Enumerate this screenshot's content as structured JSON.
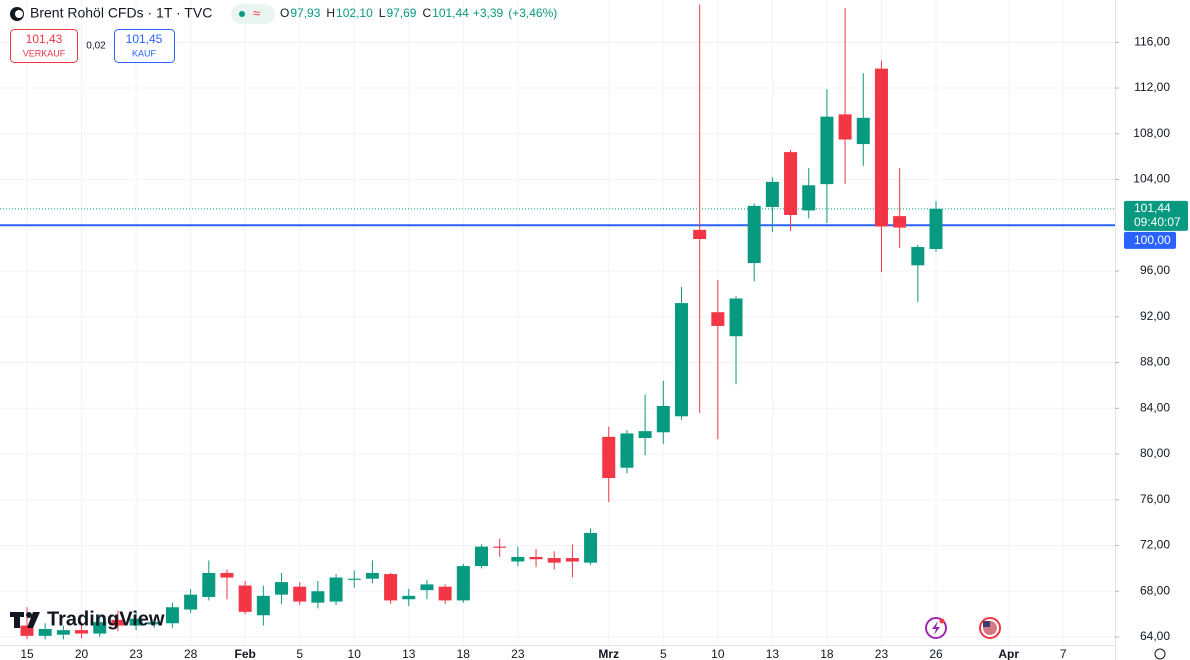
{
  "chart_data": {
    "type": "candlestick",
    "title": "Brent Rohöl CFDs · 1T · TVC",
    "legend_ohlc": [
      {
        "key": "O",
        "value": 97.93,
        "label": "97,93"
      },
      {
        "key": "H",
        "value": 102.1,
        "label": "102,10"
      },
      {
        "key": "L",
        "value": 97.69,
        "label": "97,69"
      },
      {
        "key": "C",
        "value": 101.44,
        "label": "101,44"
      }
    ],
    "change": {
      "value": 3.39,
      "label": "+3,39"
    },
    "change_pct": {
      "value": 3.46,
      "label": "(+3,46%)"
    },
    "sell": {
      "value": 101.43,
      "label": "101,43",
      "caption": "VERKAUF"
    },
    "spread": {
      "value": 0.02,
      "label": "0,02"
    },
    "buy": {
      "value": 101.45,
      "label": "101,45",
      "caption": "KAUF"
    },
    "watermark": "TradingView",
    "last_price": {
      "value": 101.44,
      "label": "101,44",
      "countdown": "09:40:07"
    },
    "hline": {
      "value": 100,
      "label": "100,00"
    },
    "up_color": "#089981",
    "down_color": "#f23645",
    "hline_color": "#2962ff",
    "grid": true,
    "categories": [
      "15",
      null,
      null,
      "20",
      null,
      null,
      "23",
      null,
      null,
      "28",
      null,
      null,
      "Feb",
      null,
      null,
      "5",
      null,
      null,
      "10",
      null,
      null,
      "13",
      null,
      null,
      "18",
      null,
      null,
      "23",
      null,
      null,
      null,
      null,
      "Mrz",
      null,
      null,
      "5",
      null,
      null,
      "10",
      null,
      null,
      "13",
      null,
      null,
      "18",
      null,
      null,
      "23",
      null,
      null,
      "26",
      null,
      null,
      null,
      "Apr",
      null,
      null,
      "7"
    ],
    "open": [
      65.0,
      64.1,
      64.2,
      64.6,
      64.3,
      65.5,
      65.0,
      65.1,
      65.2,
      66.4,
      67.5,
      69.6,
      68.5,
      65.9,
      67.7,
      68.4,
      67.0,
      67.1,
      69.0,
      69.1,
      69.5,
      67.3,
      68.1,
      68.4,
      67.2,
      70.2,
      71.9,
      70.6,
      71.0,
      70.9,
      70.9,
      70.5,
      81.5,
      78.8,
      81.4,
      81.9,
      83.3,
      99.6,
      92.4,
      90.3,
      96.7,
      101.6,
      106.4,
      101.3,
      103.6,
      109.7,
      107.1,
      113.7,
      100.8,
      96.5,
      97.93,
      null,
      null,
      null,
      null,
      null,
      null,
      null
    ],
    "high": [
      66.6,
      65.2,
      65.0,
      65.3,
      66.0,
      66.3,
      66.3,
      65.6,
      67.0,
      68.2,
      70.7,
      69.9,
      68.9,
      68.5,
      69.6,
      68.8,
      68.9,
      69.5,
      69.8,
      70.7,
      69.6,
      68.2,
      69.0,
      68.6,
      70.4,
      72.1,
      72.6,
      71.9,
      71.7,
      71.5,
      72.1,
      73.5,
      82.4,
      82.1,
      85.2,
      86.4,
      94.6,
      119.3,
      95.2,
      93.8,
      101.9,
      104.2,
      106.6,
      105.0,
      111.9,
      119.0,
      113.3,
      114.4,
      105.0,
      98.3,
      102.1,
      null,
      null,
      null,
      null,
      null,
      null,
      null
    ],
    "low": [
      63.8,
      63.8,
      63.8,
      63.9,
      64.0,
      64.5,
      64.6,
      64.8,
      64.8,
      66.1,
      67.2,
      67.3,
      66.0,
      65.0,
      66.9,
      66.8,
      66.5,
      66.8,
      68.3,
      68.7,
      66.9,
      66.7,
      67.3,
      66.9,
      67.0,
      70.0,
      71.0,
      70.2,
      70.1,
      69.9,
      69.2,
      70.3,
      75.8,
      78.3,
      79.9,
      80.9,
      83.0,
      83.6,
      81.3,
      86.1,
      95.1,
      99.4,
      99.5,
      100.6,
      100.2,
      103.6,
      105.2,
      95.9,
      98.0,
      93.3,
      97.69,
      null,
      null,
      null,
      null,
      null,
      null,
      null
    ],
    "close": [
      64.1,
      64.7,
      64.6,
      64.3,
      65.3,
      65.0,
      65.6,
      65.3,
      66.6,
      67.7,
      69.6,
      69.2,
      66.2,
      67.6,
      68.8,
      67.1,
      68.0,
      69.2,
      69.1,
      69.6,
      67.2,
      67.6,
      68.6,
      67.2,
      70.2,
      71.9,
      71.8,
      71.0,
      70.8,
      70.5,
      70.6,
      73.1,
      77.9,
      81.8,
      82.0,
      84.2,
      93.2,
      98.8,
      91.2,
      93.6,
      101.7,
      103.8,
      100.9,
      103.5,
      109.5,
      107.5,
      109.4,
      99.9,
      99.8,
      98.1,
      101.44,
      null,
      null,
      null,
      null,
      null,
      null,
      null
    ],
    "ylim": [
      63.3,
      119.7
    ],
    "yticks": [
      {
        "value": 64,
        "label": "64,00"
      },
      {
        "value": 68,
        "label": "68,00"
      },
      {
        "value": 72,
        "label": "72,00"
      },
      {
        "value": 76,
        "label": "76,00"
      },
      {
        "value": 80,
        "label": "80,00"
      },
      {
        "value": 84,
        "label": "84,00"
      },
      {
        "value": 88,
        "label": "88,00"
      },
      {
        "value": 92,
        "label": "92,00"
      },
      {
        "value": 96,
        "label": "96,00"
      },
      {
        "value": 104,
        "label": "104,00"
      },
      {
        "value": 108,
        "label": "108,00"
      },
      {
        "value": 112,
        "label": "112,00"
      },
      {
        "value": 116,
        "label": "116,00"
      }
    ]
  }
}
